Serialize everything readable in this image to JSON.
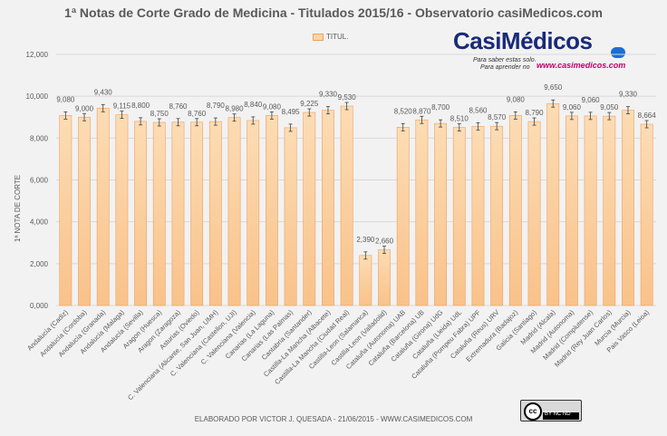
{
  "chart_data": {
    "type": "bar",
    "title": "1ª Notas de Corte Grado de Medicina - Titulados 2015/16 - Observatorio casiMedicos.com",
    "ylabel": "1ª NOTA DE CORTE",
    "xlabel": "",
    "ylim": [
      0,
      12000
    ],
    "yticks": [
      "0,000",
      "2,000",
      "4,000",
      "6,000",
      "8,000",
      "10,000",
      "12,000"
    ],
    "grid": true,
    "legend_position": "top",
    "series": [
      {
        "name": "TITUL."
      }
    ],
    "categories": [
      "Andalucía (Cadiz)",
      "Andalucía (Cordoba)",
      "Andalucía (Granada)",
      "Andalucía (Malaga)",
      "Andalucía (Sevilla)",
      "Aragon (Huesca)",
      "Aragon (Zaragoza)",
      "Asturias (Oviedo)",
      "C. Valenciana (Alicante, San Juan, UMH)",
      "C. Valenciana (Castellon, UJI)",
      "C. Valenciana (Valencia)",
      "Canarias (La Laguna)",
      "Canarias (Las Palmas)",
      "Cantabria (Santander)",
      "Castilla-La Mancha (Albacete)",
      "Castilla-La Mancha (Ciudad Real)",
      "Castilla-Leon (Salamanca)",
      "Castilla-Leon (Valladolid)",
      "Cataluña (Autonoma) UAB",
      "Cataluña (Barcelona) UB",
      "Cataluña (Girona) UdG",
      "Cataluña (Lleida) UdL",
      "Cataluña (Pompeu Fabra) UPF",
      "Cataluña (Reus) URV",
      "Extremadura (Badajoz)",
      "Galicia (Santiago)",
      "Madrid (Alcala)",
      "Madrid (Autonoma)",
      "Madrid (Complutense)",
      "Madrid (Rey Juan Carlos)",
      "Murcia (Murcia)",
      "Pais Vasco (Leioa)"
    ],
    "values": [
      9080,
      9000,
      9430,
      9115,
      8800,
      8750,
      8760,
      8760,
      8790,
      8980,
      8840,
      9080,
      8495,
      9225,
      9330,
      9530,
      2390,
      2660,
      8520,
      8870,
      8700,
      8510,
      8560,
      8570,
      9080,
      8790,
      9650,
      9060,
      9060,
      9050,
      9330,
      8664
    ],
    "value_labels": [
      "9,080",
      "9,000",
      "9,430",
      "9,115",
      "8,800",
      "8,750",
      "8,760",
      "8,760",
      "8,790",
      "8,980",
      "8,840",
      "9,080",
      "8,495",
      "9,225",
      "9,330",
      "9,530",
      "2,390",
      "2,660",
      "8,520",
      "8,870",
      "8,700",
      "8,510",
      "8,560",
      "8,570",
      "9,080",
      "8,790",
      "9,650",
      "9,060",
      "9,060",
      "9,050",
      "9,330",
      "8,664"
    ],
    "error_bars": true
  },
  "colors": {
    "bar_fill_top": "#fcdcb4",
    "bar_fill_bottom": "#f9c28a",
    "bar_edge": "#f0a060",
    "error_bar": "#404040",
    "grid": "#d9d9d9",
    "text": "#595959",
    "background": "#f2f2f2"
  },
  "logo": {
    "brand": "CasiMédicos",
    "tagline_1": "Para saber estas solo.",
    "tagline_2": "Para aprender no",
    "url": "www.casimedicos.com",
    "dot_text": ".com"
  },
  "license": {
    "badge": "cc",
    "terms": "BY NC ND"
  },
  "footer": "ELABORADO POR VICTOR J. QUESADA - 21/06/2015 - WWW.CASIMEDICOS.COM"
}
